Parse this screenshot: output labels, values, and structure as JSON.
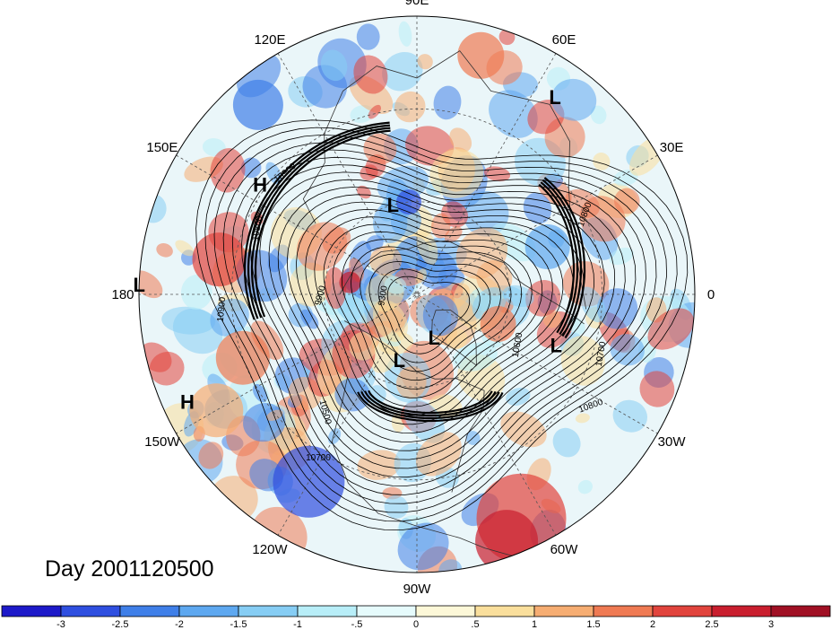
{
  "title": "Day 2001120500",
  "longitude_labels": [
    {
      "text": "90E",
      "deg": 90
    },
    {
      "text": "60E",
      "deg": 60
    },
    {
      "text": "30E",
      "deg": 30
    },
    {
      "text": "0",
      "deg": 0
    },
    {
      "text": "30W",
      "deg": -30
    },
    {
      "text": "60W",
      "deg": -60
    },
    {
      "text": "90W",
      "deg": -90
    },
    {
      "text": "120W",
      "deg": -120
    },
    {
      "text": "150W",
      "deg": -150
    },
    {
      "text": "180",
      "deg": 180
    },
    {
      "text": "150E",
      "deg": 150
    },
    {
      "text": "120E",
      "deg": 120
    }
  ],
  "pressure_centers": [
    {
      "type": "L",
      "lon": 55,
      "lat": 12
    },
    {
      "type": "L",
      "lon": 105,
      "lat": 60
    },
    {
      "type": "L",
      "lon": 178,
      "lat": 0
    },
    {
      "type": "L",
      "lon": -68,
      "lat": 75
    },
    {
      "type": "L",
      "lon": -105,
      "lat": 68
    },
    {
      "type": "L",
      "lon": -20,
      "lat": 42
    },
    {
      "type": "H",
      "lon": 145,
      "lat": 28
    },
    {
      "type": "H",
      "lon": -155,
      "lat": 8
    }
  ],
  "contour_labels": [
    "10900",
    "10800",
    "10800",
    "9900",
    "9300",
    "10600",
    "10700",
    "10500",
    "10700",
    "10800",
    "10900"
  ],
  "colorbar": {
    "ticks": [
      "-3",
      "-2.5",
      "-2",
      "-1.5",
      "-1",
      "-.5",
      "0",
      ".5",
      "1",
      "1.5",
      "2",
      "2.5",
      "3"
    ],
    "colors": [
      "#1d19c9",
      "#2f4fe0",
      "#3f7fe8",
      "#5ea8f0",
      "#86cdf4",
      "#b8eef8",
      "#e6fbfc",
      "#fdf8d8",
      "#fadf9c",
      "#f6ad72",
      "#ef7a53",
      "#e1443d",
      "#c91e2e",
      "#a01024"
    ]
  }
}
